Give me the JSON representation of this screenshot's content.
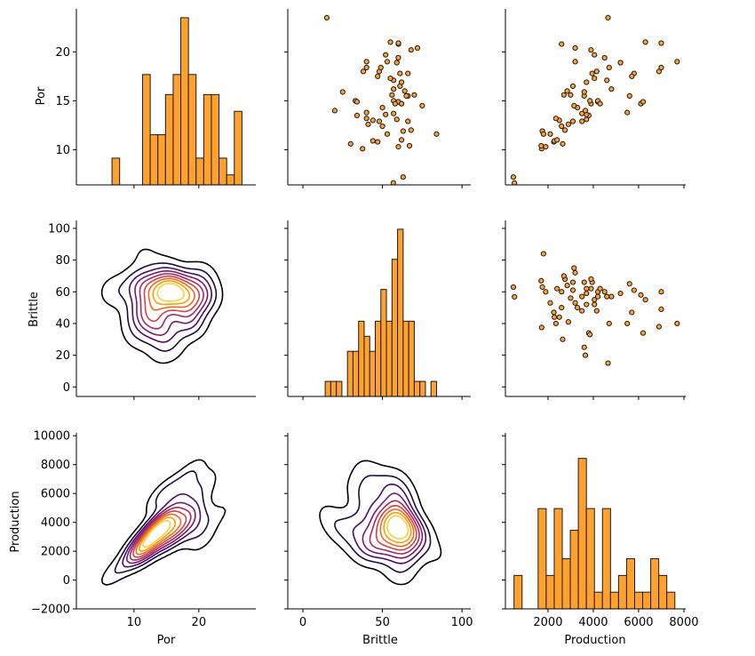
{
  "chart_data": {
    "type": "pairplot",
    "variables": [
      "Por",
      "Brittle",
      "Production"
    ],
    "diagonal": "histogram",
    "lower": "kde-contour",
    "upper": "scatter",
    "colors": {
      "fill": "#ffa12e",
      "edge": "#1a1a1a",
      "kde_cmap": [
        "#000004",
        "#1b0c41",
        "#4a0c6b",
        "#781c6d",
        "#a52c60",
        "#cf4446",
        "#ed6925",
        "#fb9b06",
        "#f7d13d"
      ]
    },
    "axes": {
      "Por": {
        "label": "Por",
        "range": [
          1.1,
          28.8
        ],
        "ticks": [
          10,
          20
        ],
        "diag_ticks_y": [
          10,
          15,
          20
        ],
        "diag_ylim": [
          6.4,
          24.4
        ]
      },
      "Brittle": {
        "label": "Brittle",
        "range": [
          -9.5,
          105.5
        ],
        "ticks": [
          0,
          50,
          100
        ],
        "yrange": [
          -6,
          105
        ],
        "yticks": [
          0,
          20,
          40,
          60,
          80,
          100
        ]
      },
      "Production": {
        "label": "Production",
        "range": [
          120,
          8080
        ],
        "ticks": [
          2000,
          4000,
          6000,
          8000
        ],
        "yrange": [
          -2000,
          10200
        ],
        "yticks": [
          -2000,
          0,
          2000,
          4000,
          6000,
          8000,
          10000
        ]
      }
    },
    "tick_labels": {
      "Por_y": [
        "10",
        "15",
        "20"
      ],
      "Brittle_y": [
        "0",
        "20",
        "40",
        "60",
        "80",
        "100"
      ],
      "Production_y": [
        "−2000",
        "0",
        "2000",
        "4000",
        "6000",
        "8000",
        "10000"
      ],
      "Por_x": [
        "10",
        "20"
      ],
      "Brittle_x": [
        "0",
        "50",
        "100"
      ],
      "Production_x": [
        "2000",
        "4000",
        "6000",
        "8000"
      ]
    },
    "histograms": {
      "Por": {
        "bin_edges_start": 6.6,
        "bin_width": 1.18,
        "counts_relative": [
          0.16,
          0,
          0,
          0,
          0.66,
          0.3,
          0.3,
          0.54,
          0.66,
          1.0,
          0.66,
          0.16,
          0.54,
          0.54,
          0.16,
          0.06,
          0.44,
          0,
          0,
          0.06
        ]
      },
      "Brittle": {
        "bin_edges_start": 14,
        "bin_width": 3.5,
        "counts_relative": [
          0.09,
          0.09,
          0.09,
          0,
          0.27,
          0.27,
          0.45,
          0.36,
          0.27,
          0.45,
          0.64,
          0.45,
          0.82,
          1.0,
          0.45,
          0.45,
          0.09,
          0.09,
          0,
          0.09
        ]
      },
      "Production": {
        "bin_edges_start": 500,
        "bin_width": 355,
        "counts_relative": [
          0.2,
          0,
          0,
          0.6,
          0.2,
          0.6,
          0.3,
          0.47,
          0.9,
          0.6,
          0.1,
          0.6,
          0.1,
          0.2,
          0.3,
          0.1,
          0.1,
          0.3,
          0.2,
          0.1
        ]
      }
    },
    "points": [
      {
        "Por": 6.6,
        "Brittle": 56.8,
        "Production": 520
      },
      {
        "Por": 7.2,
        "Brittle": 63.0,
        "Production": 470
      },
      {
        "Por": 10.1,
        "Brittle": 37.5,
        "Production": 1720
      },
      {
        "Por": 10.3,
        "Brittle": 60.0,
        "Production": 1900
      },
      {
        "Por": 10.4,
        "Brittle": 67.0,
        "Production": 1700
      },
      {
        "Por": 10.6,
        "Brittle": 30.0,
        "Production": 2650
      },
      {
        "Por": 10.8,
        "Brittle": 47.0,
        "Production": 2260
      },
      {
        "Por": 10.9,
        "Brittle": 44.0,
        "Production": 2280
      },
      {
        "Por": 11.0,
        "Brittle": 62.0,
        "Production": 2400
      },
      {
        "Por": 11.6,
        "Brittle": 53.0,
        "Production": 2100
      },
      {
        "Por": 11.9,
        "Brittle": 63.0,
        "Production": 1750
      },
      {
        "Por": 12.0,
        "Brittle": 68.0,
        "Production": 2750
      },
      {
        "Por": 12.4,
        "Brittle": 50.0,
        "Production": 2600
      },
      {
        "Por": 12.6,
        "Brittle": 41.0,
        "Production": 2900
      },
      {
        "Por": 12.9,
        "Brittle": 48.0,
        "Production": 3500
      },
      {
        "Por": 13.0,
        "Brittle": 44.0,
        "Production": 2500
      },
      {
        "Por": 13.2,
        "Brittle": 40.0,
        "Production": 2350
      },
      {
        "Por": 13.5,
        "Brittle": 34.0,
        "Production": 3800
      },
      {
        "Por": 13.6,
        "Brittle": 52.0,
        "Production": 3700
      },
      {
        "Por": 13.7,
        "Brittle": 57.0,
        "Production": 3500
      },
      {
        "Por": 14.0,
        "Brittle": 20.0,
        "Production": 3650
      },
      {
        "Por": 14.3,
        "Brittle": 50.0,
        "Production": 3300
      },
      {
        "Por": 14.5,
        "Brittle": 75.0,
        "Production": 3150
      },
      {
        "Por": 14.7,
        "Brittle": 62.0,
        "Production": 3900
      },
      {
        "Por": 14.9,
        "Brittle": 60.0,
        "Production": 4200
      },
      {
        "Por": 15.0,
        "Brittle": 57.0,
        "Production": 4200
      },
      {
        "Por": 15.0,
        "Brittle": 33.0,
        "Production": 3850
      },
      {
        "Por": 15.5,
        "Brittle": 66.0,
        "Production": 3600
      },
      {
        "Por": 15.6,
        "Brittle": 70.0,
        "Production": 2700
      },
      {
        "Por": 15.6,
        "Brittle": 56.0,
        "Production": 3000
      },
      {
        "Por": 15.9,
        "Brittle": 25.0,
        "Production": 3600
      },
      {
        "Por": 16.0,
        "Brittle": 64.0,
        "Production": 2850
      },
      {
        "Por": 16.5,
        "Brittle": 61.0,
        "Production": 3100
      },
      {
        "Por": 16.9,
        "Brittle": 62.0,
        "Production": 3700
      },
      {
        "Por": 17.1,
        "Brittle": 57.0,
        "Production": 4600
      },
      {
        "Por": 17.3,
        "Brittle": 55.0,
        "Production": 4050
      },
      {
        "Por": 17.8,
        "Brittle": 66.0,
        "Production": 3950
      },
      {
        "Por": 18.0,
        "Brittle": 48.0,
        "Production": 4150
      },
      {
        "Por": 18.4,
        "Brittle": 40.0,
        "Production": 4700
      },
      {
        "Por": 18.9,
        "Brittle": 59.0,
        "Production": 5200
      },
      {
        "Por": 19.0,
        "Brittle": 53.0,
        "Production": 3200
      },
      {
        "Por": 19.4,
        "Brittle": 60.0,
        "Production": 4500
      },
      {
        "Por": 19.7,
        "Brittle": 52.0,
        "Production": 4050
      },
      {
        "Por": 20.2,
        "Brittle": 68.0,
        "Production": 3900
      },
      {
        "Por": 20.4,
        "Brittle": 72.0,
        "Production": 3200
      },
      {
        "Por": 20.8,
        "Brittle": 60.0,
        "Production": 2600
      },
      {
        "Por": 20.9,
        "Brittle": 60.0,
        "Production": 7000
      },
      {
        "Por": 21.0,
        "Brittle": 55.0,
        "Production": 6300
      },
      {
        "Por": 23.5,
        "Brittle": 15.0,
        "Production": 4650
      },
      {
        "Por": 17.8,
        "Brittle": 61.0,
        "Production": 5800
      },
      {
        "Por": 17.5,
        "Brittle": 47.0,
        "Production": 5700
      },
      {
        "Por": 18.0,
        "Brittle": 38.0,
        "Production": 6900
      },
      {
        "Por": 18.4,
        "Brittle": 49.0,
        "Production": 7000
      },
      {
        "Por": 16.2,
        "Brittle": 57.0,
        "Production": 4800
      },
      {
        "Por": 15.5,
        "Brittle": 65.0,
        "Production": 5600
      },
      {
        "Por": 14.7,
        "Brittle": 62.0,
        "Production": 4300
      },
      {
        "Por": 13.8,
        "Brittle": 40.0,
        "Production": 5500
      },
      {
        "Por": 12.9,
        "Brittle": 66.0,
        "Production": 3100
      },
      {
        "Por": 11.6,
        "Brittle": 84.0,
        "Production": 1800
      },
      {
        "Por": 19.0,
        "Brittle": 40.0,
        "Production": 7700
      },
      {
        "Por": 14.7,
        "Brittle": 58.0,
        "Production": 6100
      },
      {
        "Por": 14.9,
        "Brittle": 34.0,
        "Production": 6200
      },
      {
        "Por": 13.1,
        "Brittle": 59.0,
        "Production": 3700
      }
    ],
    "kde_levels": 10
  }
}
